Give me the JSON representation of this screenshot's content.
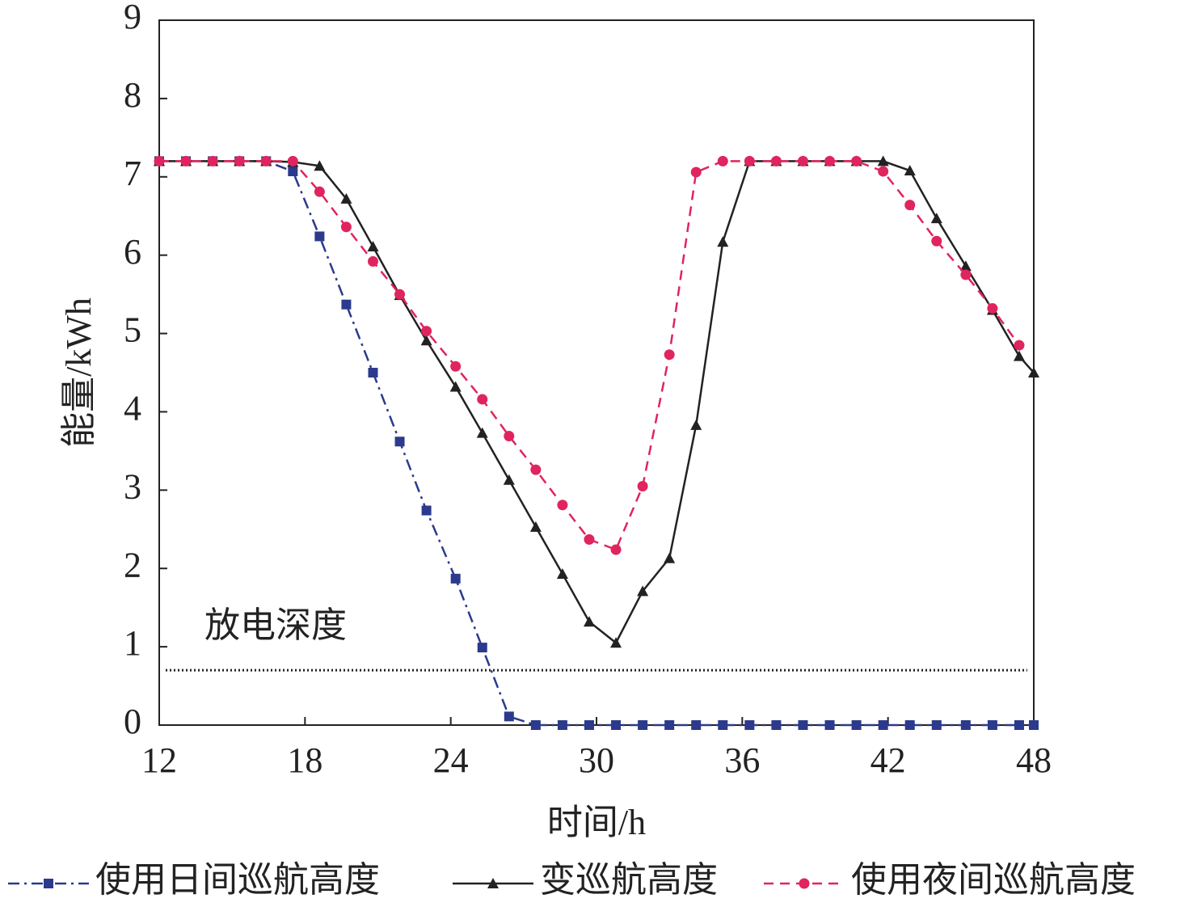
{
  "chart_data": {
    "type": "line",
    "xlabel": "时间/h",
    "ylabel": "能量/kWh",
    "x": [
      12,
      13.1,
      14.2,
      15.3,
      16.4,
      17.5,
      18.6,
      19.7,
      20.8,
      21.9,
      23.0,
      24.2,
      25.3,
      26.4,
      27.5,
      28.6,
      29.7,
      30.8,
      31.9,
      33.0,
      34.1,
      35.2,
      36.3,
      37.4,
      38.5,
      39.6,
      40.7,
      41.8,
      42.9,
      44.0,
      45.2,
      46.3,
      47.4,
      48
    ],
    "series": [
      {
        "name": "使用日间巡航高度",
        "color": "#2b3a8c",
        "dash": "dashdot",
        "marker": "square",
        "values": [
          7.2,
          7.2,
          7.2,
          7.2,
          7.2,
          7.07,
          6.24,
          5.37,
          4.5,
          3.62,
          2.74,
          1.87,
          0.99,
          0.11,
          0,
          0,
          0,
          0,
          0,
          0,
          0,
          0,
          0,
          0,
          0,
          0,
          0,
          0,
          0,
          0,
          0,
          0,
          0,
          0
        ]
      },
      {
        "name": "变巡航高度",
        "color": "#222222",
        "dash": "solid",
        "marker": "triangle",
        "values": [
          7.2,
          7.2,
          7.2,
          7.2,
          7.2,
          7.19,
          7.14,
          6.72,
          6.11,
          5.49,
          4.91,
          4.32,
          3.73,
          3.13,
          2.53,
          1.93,
          1.32,
          1.05,
          1.71,
          2.13,
          3.83,
          6.17,
          7.2,
          7.2,
          7.2,
          7.2,
          7.2,
          7.2,
          7.08,
          6.47,
          5.86,
          5.3,
          4.71,
          4.5
        ]
      },
      {
        "name": "使用夜间巡航高度",
        "color": "#e0245e",
        "dash": "dashed",
        "marker": "circle",
        "values": [
          7.2,
          7.2,
          7.2,
          7.2,
          7.2,
          7.2,
          6.81,
          6.36,
          5.92,
          5.5,
          5.03,
          4.58,
          4.16,
          3.69,
          3.26,
          2.81,
          2.37,
          2.24,
          3.05,
          4.73,
          7.06,
          7.2,
          7.2,
          7.2,
          7.2,
          7.2,
          7.2,
          7.07,
          6.64,
          6.18,
          5.75,
          5.32,
          4.85,
          null
        ]
      }
    ],
    "annotation": {
      "text": "放电深度",
      "y": 0.7
    },
    "xlim": [
      12,
      48
    ],
    "xticks": [
      12,
      18,
      24,
      30,
      36,
      42,
      48
    ],
    "ylim": [
      0,
      9
    ],
    "yticks": [
      0,
      1,
      2,
      3,
      4,
      5,
      6,
      7,
      8,
      9
    ]
  }
}
